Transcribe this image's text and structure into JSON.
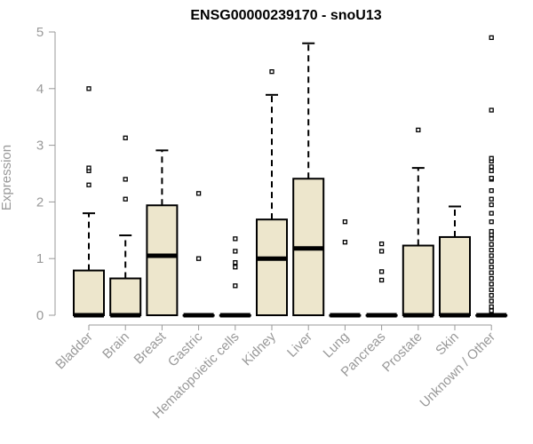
{
  "chart_data": {
    "type": "boxplot",
    "title": "ENSG00000239170 - snoU13",
    "ylabel": "Expression",
    "ylim": [
      0,
      5
    ],
    "yticks": [
      0,
      1,
      2,
      3,
      4,
      5
    ],
    "ytick_labels": [
      "0",
      "1",
      "2",
      "3",
      "4",
      "5"
    ],
    "grid": false,
    "colors": {
      "box_fill": "#ede6cc",
      "stroke": "#000000",
      "axis": "#999999",
      "outlier": "#000000"
    },
    "categories": [
      "Bladder",
      "Brain",
      "Breast",
      "Gastric",
      "Hematopoietic cells",
      "Kidney",
      "Liver",
      "Lung",
      "Pancreas",
      "Prostate",
      "Skin",
      "Unknown / Other"
    ],
    "boxes": [
      {
        "label": "Bladder",
        "q1": 0,
        "median": 0,
        "q3": 0.79,
        "whisker_low": 0,
        "whisker_high": 1.8,
        "outliers": [
          2.3,
          2.55,
          2.6,
          4.0
        ]
      },
      {
        "label": "Brain",
        "q1": 0,
        "median": 0,
        "q3": 0.65,
        "whisker_low": 0,
        "whisker_high": 1.41,
        "outliers": [
          2.05,
          2.4,
          3.13
        ]
      },
      {
        "label": "Breast",
        "q1": 0,
        "median": 1.05,
        "q3": 1.94,
        "whisker_low": 0,
        "whisker_high": 2.91,
        "outliers": []
      },
      {
        "label": "Gastric",
        "q1": 0,
        "median": 0,
        "q3": 0,
        "whisker_low": 0,
        "whisker_high": 0,
        "outliers": [
          1.0,
          2.15
        ]
      },
      {
        "label": "Hematopoietic cells",
        "q1": 0,
        "median": 0,
        "q3": 0,
        "whisker_low": 0,
        "whisker_high": 0,
        "outliers": [
          0.52,
          0.85,
          0.93,
          1.13,
          1.35
        ]
      },
      {
        "label": "Kidney",
        "q1": 0,
        "median": 1.0,
        "q3": 1.69,
        "whisker_low": 0,
        "whisker_high": 3.89,
        "outliers": [
          4.3
        ]
      },
      {
        "label": "Liver",
        "q1": 0,
        "median": 1.18,
        "q3": 2.41,
        "whisker_low": 0,
        "whisker_high": 4.8,
        "outliers": []
      },
      {
        "label": "Lung",
        "q1": 0,
        "median": 0,
        "q3": 0,
        "whisker_low": 0,
        "whisker_high": 0,
        "outliers": [
          1.29,
          1.65
        ]
      },
      {
        "label": "Pancreas",
        "q1": 0,
        "median": 0,
        "q3": 0,
        "whisker_low": 0,
        "whisker_high": 0,
        "outliers": [
          0.62,
          0.77,
          1.13,
          1.26
        ]
      },
      {
        "label": "Prostate",
        "q1": 0,
        "median": 0,
        "q3": 1.23,
        "whisker_low": 0,
        "whisker_high": 2.6,
        "outliers": [
          3.27
        ]
      },
      {
        "label": "Skin",
        "q1": 0,
        "median": 0,
        "q3": 1.38,
        "whisker_low": 0,
        "whisker_high": 1.92,
        "outliers": []
      },
      {
        "label": "Unknown / Other",
        "q1": 0,
        "median": 0,
        "q3": 0,
        "whisker_low": 0,
        "whisker_high": 0,
        "outliers": [
          0.08,
          0.15,
          0.25,
          0.35,
          0.45,
          0.55,
          0.65,
          0.75,
          0.85,
          0.95,
          1.05,
          1.15,
          1.25,
          1.35,
          1.42,
          1.48,
          1.65,
          1.8,
          1.95,
          2.05,
          2.2,
          2.4,
          2.42,
          2.55,
          2.62,
          2.72,
          2.77,
          3.62,
          4.9
        ]
      }
    ]
  }
}
